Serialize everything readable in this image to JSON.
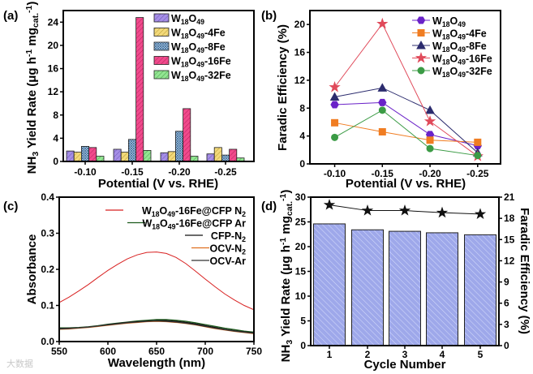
{
  "watermark": "大数据",
  "chart_data": [
    {
      "panel": "(a)",
      "type": "bar",
      "xlabel": "Potential (V vs. RHE)",
      "ylabel": "NH_{3} Yield Rate (μg h^{-1} mg_{cat.}^{-1})",
      "categories": [
        "-0.10",
        "-0.15",
        "-0.20",
        "-0.25"
      ],
      "ylim": [
        0,
        26
      ],
      "yticks": [
        0,
        4,
        8,
        12,
        16,
        20,
        24
      ],
      "legend": "top-right",
      "series": [
        {
          "name": "W_{18}O_{49}",
          "color": "#a58ee6",
          "values": [
            1.8,
            2.1,
            1.5,
            1.3
          ]
        },
        {
          "name": "W_{18}O_{49}-4Fe",
          "color": "#f2d97a",
          "values": [
            1.6,
            1.6,
            1.7,
            2.4
          ]
        },
        {
          "name": "W_{18}O_{49}-8Fe",
          "color": "#8fb6dc",
          "values": [
            2.6,
            3.8,
            5.2,
            1.1
          ]
        },
        {
          "name": "W_{18}O_{49}-16Fe",
          "color": "#f04a8c",
          "values": [
            2.4,
            24.8,
            9.1,
            2.1
          ]
        },
        {
          "name": "W_{18}O_{49}-32Fe",
          "color": "#92e592",
          "values": [
            0.9,
            1.9,
            0.9,
            0.6
          ]
        }
      ]
    },
    {
      "panel": "(b)",
      "type": "line",
      "xlabel": "Potential (V vs. RHE)",
      "ylabel": "Faradic Efficiency (%)",
      "x": [
        -0.1,
        -0.15,
        -0.2,
        -0.25
      ],
      "xticklabels": [
        "-0.10",
        "-0.15",
        "-0.20",
        "-0.25"
      ],
      "xlim": [
        -0.074,
        -0.274
      ],
      "ylim": [
        0,
        22
      ],
      "yticks": [
        0,
        4,
        8,
        12,
        16,
        20
      ],
      "legend": "top-right",
      "series": [
        {
          "name": "W_{18}O_{49}",
          "color": "#6a22c8",
          "marker": "hexagon",
          "values": [
            8.5,
            8.8,
            4.2,
            2.6
          ]
        },
        {
          "name": "W_{18}O_{49}-4Fe",
          "color": "#f07d22",
          "marker": "square",
          "values": [
            5.9,
            4.6,
            3.4,
            3.1
          ]
        },
        {
          "name": "W_{18}O_{49}-8Fe",
          "color": "#2c2c6e",
          "marker": "triangle",
          "values": [
            9.6,
            10.9,
            7.7,
            1.6
          ]
        },
        {
          "name": "W_{18}O_{49}-16Fe",
          "color": "#e04a5a",
          "marker": "star",
          "values": [
            11.0,
            20.1,
            6.1,
            1.1
          ]
        },
        {
          "name": "W_{18}O_{49}-32Fe",
          "color": "#3b9b45",
          "marker": "circle",
          "values": [
            3.8,
            7.7,
            2.2,
            1.2
          ]
        }
      ]
    },
    {
      "panel": "(c)",
      "type": "line",
      "xlabel": "Wavelength (nm)",
      "ylabel": "Absorbance",
      "xlim": [
        550,
        750
      ],
      "ylim": [
        0,
        0.4
      ],
      "xticks": [
        550,
        600,
        650,
        700,
        750
      ],
      "yticks": [
        "0.0",
        "0.1",
        "0.2",
        "0.3",
        "0.4"
      ],
      "legend": "top-right",
      "x": [
        550,
        560,
        570,
        580,
        590,
        600,
        610,
        620,
        630,
        640,
        650,
        660,
        670,
        680,
        690,
        700,
        710,
        720,
        730,
        740,
        750
      ],
      "series": [
        {
          "name": "W_{18}O_{49}-16Fe@CFP N_{2}",
          "color": "#d82020",
          "values": [
            0.108,
            0.123,
            0.14,
            0.158,
            0.178,
            0.197,
            0.214,
            0.229,
            0.24,
            0.247,
            0.248,
            0.244,
            0.233,
            0.216,
            0.195,
            0.173,
            0.152,
            0.132,
            0.115,
            0.1,
            0.088
          ]
        },
        {
          "name": "W_{18}O_{49}-16Fe@CFP Ar",
          "color": "#1c5a1c",
          "values": [
            0.038,
            0.038,
            0.039,
            0.041,
            0.044,
            0.048,
            0.051,
            0.054,
            0.057,
            0.059,
            0.061,
            0.061,
            0.059,
            0.056,
            0.052,
            0.047,
            0.042,
            0.037,
            0.033,
            0.029,
            0.026
          ]
        },
        {
          "name": "CFP-N_{2}",
          "color": "#111111",
          "values": [
            0.036,
            0.037,
            0.038,
            0.04,
            0.043,
            0.047,
            0.05,
            0.053,
            0.055,
            0.057,
            0.058,
            0.058,
            0.056,
            0.053,
            0.049,
            0.044,
            0.039,
            0.034,
            0.03,
            0.027,
            0.024
          ]
        },
        {
          "name": "OCV-N_{2}",
          "color": "#e07020",
          "values": [
            0.034,
            0.035,
            0.037,
            0.039,
            0.042,
            0.045,
            0.048,
            0.051,
            0.053,
            0.055,
            0.056,
            0.055,
            0.053,
            0.05,
            0.046,
            0.041,
            0.036,
            0.032,
            0.028,
            0.025,
            0.022
          ]
        },
        {
          "name": "OCV-Ar",
          "color": "#333333",
          "values": [
            0.035,
            0.036,
            0.038,
            0.04,
            0.043,
            0.046,
            0.049,
            0.052,
            0.054,
            0.056,
            0.057,
            0.056,
            0.054,
            0.051,
            0.047,
            0.042,
            0.037,
            0.033,
            0.029,
            0.026,
            0.023
          ]
        }
      ]
    },
    {
      "panel": "(d)",
      "type": "bar",
      "xlabel": "Cycle Number",
      "ylabel": "NH_{3} Yield Rate (μg h^{-1} mg_{cat.}^{-1})",
      "y2label": "Faradic Efficiency (%)",
      "categories": [
        "1",
        "2",
        "3",
        "4",
        "5"
      ],
      "ylim": [
        0,
        30
      ],
      "yticks": [
        0,
        5,
        10,
        15,
        20,
        25,
        30
      ],
      "y2lim": [
        0,
        21
      ],
      "y2ticks": [
        0,
        3,
        6,
        9,
        12,
        15,
        18,
        21
      ],
      "series": [
        {
          "name": "Yield Rate",
          "color": "#9ea8ea",
          "values": [
            24.6,
            23.4,
            23.1,
            22.8,
            22.4
          ]
        },
        {
          "name": "Faradic Efficiency",
          "color": "#111111",
          "axis": "right",
          "values": [
            19.9,
            19.1,
            19.1,
            18.8,
            18.6
          ]
        }
      ]
    }
  ]
}
